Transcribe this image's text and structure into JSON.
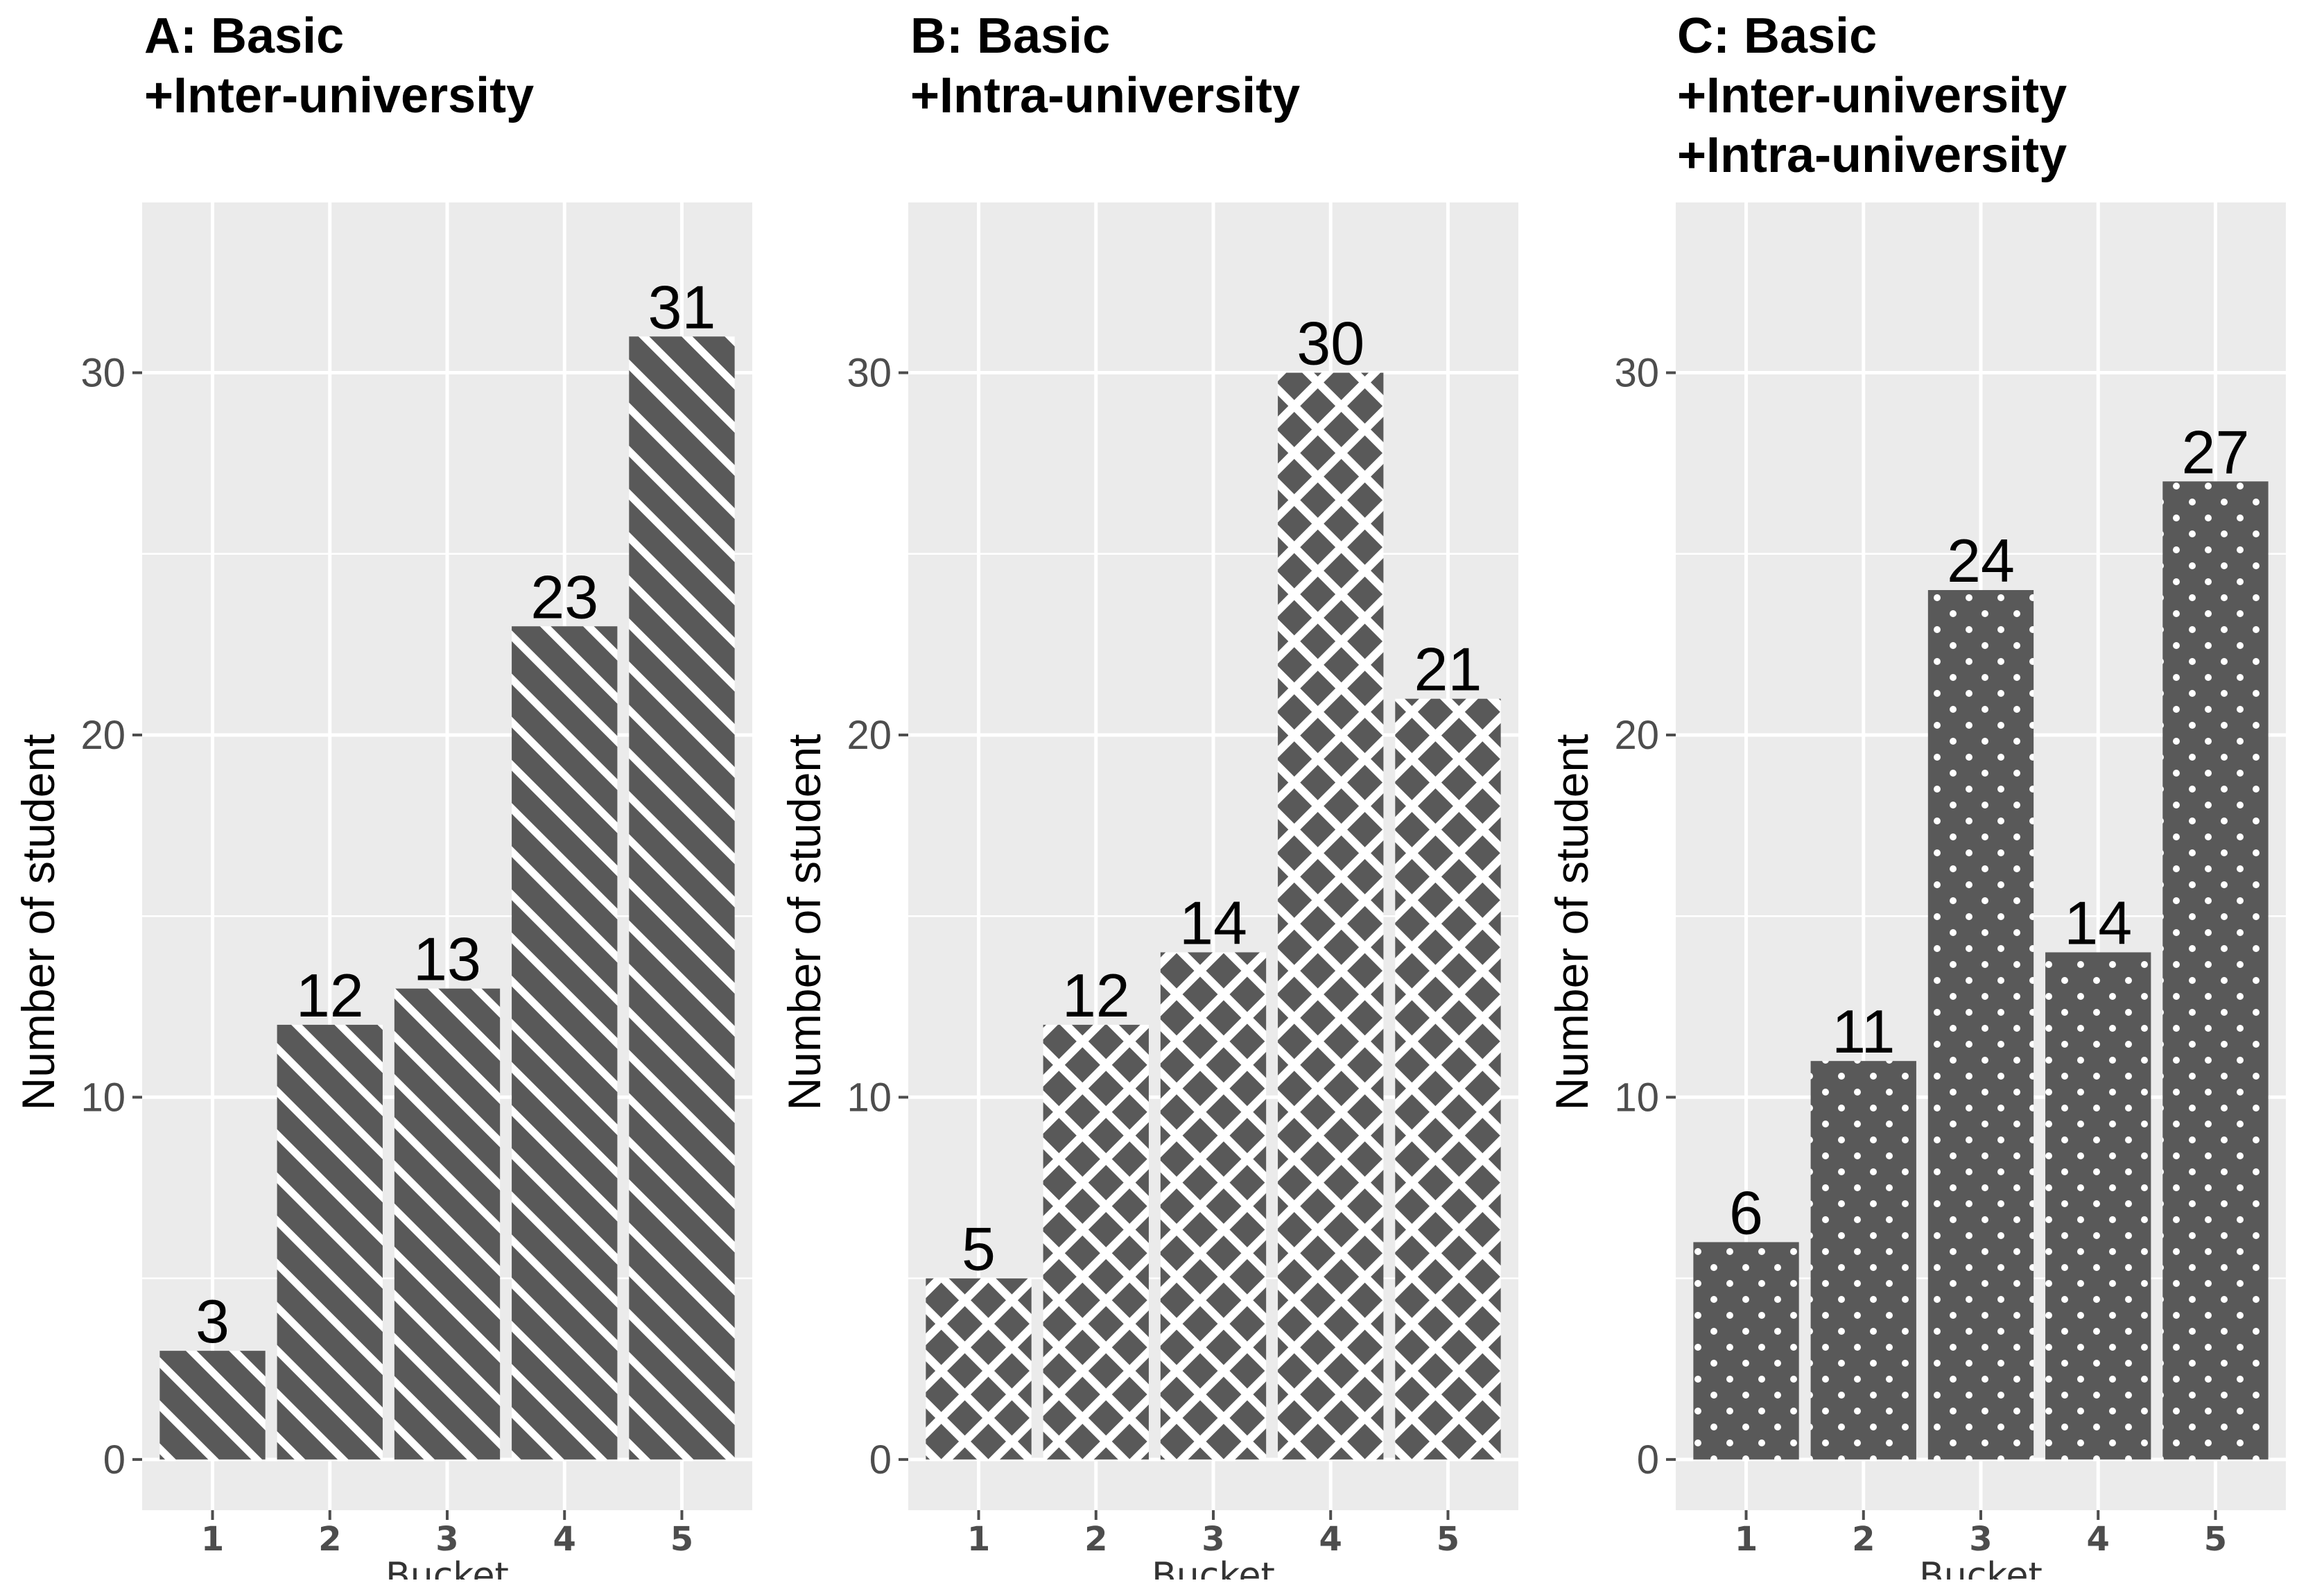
{
  "chart_data": [
    {
      "type": "bar",
      "panel": "A",
      "title_lines": [
        "A: Basic",
        "+Inter-university"
      ],
      "categories": [
        "1",
        "2",
        "3",
        "4",
        "5"
      ],
      "values": [
        3,
        12,
        13,
        23,
        31
      ],
      "xlabel": "Bucket",
      "ylabel": "Number of student",
      "ylim": [
        -1.4,
        34.7
      ],
      "yticks": [
        0,
        10,
        20,
        30
      ],
      "pattern": "stripe",
      "grid": true
    },
    {
      "type": "bar",
      "panel": "B",
      "title_lines": [
        "B: Basic",
        "+Intra-university"
      ],
      "categories": [
        "1",
        "2",
        "3",
        "4",
        "5"
      ],
      "values": [
        5,
        12,
        14,
        30,
        21
      ],
      "xlabel": "Bucket",
      "ylabel": "Number of student",
      "ylim": [
        -1.4,
        34.7
      ],
      "yticks": [
        0,
        10,
        20,
        30
      ],
      "pattern": "crosshatch",
      "grid": true
    },
    {
      "type": "bar",
      "panel": "C",
      "title_lines": [
        "C: Basic",
        "+Inter-university",
        "+Intra-university"
      ],
      "categories": [
        "1",
        "2",
        "3",
        "4",
        "5"
      ],
      "values": [
        6,
        11,
        24,
        14,
        27
      ],
      "xlabel": "Bucket",
      "ylabel": "Number of student",
      "ylim": [
        -1.4,
        34.7
      ],
      "yticks": [
        0,
        10,
        20,
        30
      ],
      "pattern": "dots",
      "grid": true
    }
  ],
  "colors": {
    "panel_bg": "#ebebeb",
    "grid": "#ffffff",
    "bar_fill": "#595959",
    "pattern": "#ffffff"
  }
}
